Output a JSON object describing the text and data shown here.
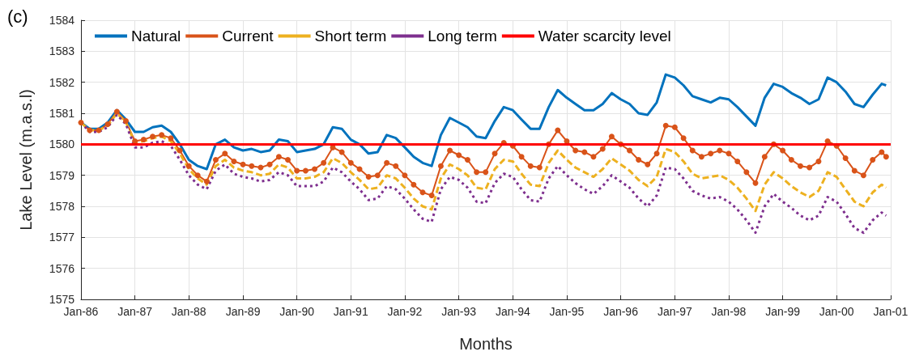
{
  "chart_data": {
    "type": "line",
    "title": "(c)",
    "xlabel": "Months",
    "ylabel": "Lake Level (m.a.s.l)",
    "x": [
      "1986-01",
      "1986-03",
      "1986-05",
      "1986-07",
      "1986-09",
      "1986-11",
      "1987-01",
      "1987-03",
      "1987-05",
      "1987-07",
      "1987-09",
      "1987-11",
      "1988-01",
      "1988-03",
      "1988-05",
      "1988-07",
      "1988-09",
      "1988-11",
      "1989-01",
      "1989-03",
      "1989-05",
      "1989-07",
      "1989-09",
      "1989-11",
      "1990-01",
      "1990-03",
      "1990-05",
      "1990-07",
      "1990-09",
      "1990-11",
      "1991-01",
      "1991-03",
      "1991-05",
      "1991-07",
      "1991-09",
      "1991-11",
      "1992-01",
      "1992-03",
      "1992-05",
      "1992-07",
      "1992-09",
      "1992-11",
      "1993-01",
      "1993-03",
      "1993-05",
      "1993-07",
      "1993-09",
      "1993-11",
      "1994-01",
      "1994-03",
      "1994-05",
      "1994-07",
      "1994-09",
      "1994-11",
      "1995-01",
      "1995-03",
      "1995-05",
      "1995-07",
      "1995-09",
      "1995-11",
      "1996-01",
      "1996-03",
      "1996-05",
      "1996-07",
      "1996-09",
      "1996-11",
      "1997-01",
      "1997-03",
      "1997-05",
      "1997-07",
      "1997-09",
      "1997-11",
      "1998-01",
      "1998-03",
      "1998-05",
      "1998-07",
      "1998-09",
      "1998-11",
      "1999-01",
      "1999-03",
      "1999-05",
      "1999-07",
      "1999-09",
      "1999-11",
      "2000-01",
      "2000-03",
      "2000-05",
      "2000-07",
      "2000-09",
      "2000-11",
      "2000-12"
    ],
    "series": [
      {
        "name": "Natural",
        "color": "#0072bd",
        "marker": "none",
        "line_style": "solid",
        "values": [
          1580.7,
          1580.5,
          1580.5,
          1580.7,
          1581.1,
          1580.8,
          1580.4,
          1580.4,
          1580.55,
          1580.6,
          1580.4,
          1580.0,
          1579.5,
          1579.3,
          1579.2,
          1580.0,
          1580.15,
          1579.9,
          1579.8,
          1579.85,
          1579.75,
          1579.8,
          1580.15,
          1580.1,
          1579.75,
          1579.8,
          1579.85,
          1580.0,
          1580.55,
          1580.5,
          1580.15,
          1580.0,
          1579.7,
          1579.75,
          1580.3,
          1580.2,
          1579.9,
          1579.6,
          1579.4,
          1579.3,
          1580.3,
          1580.85,
          1580.7,
          1580.55,
          1580.25,
          1580.2,
          1580.75,
          1581.2,
          1581.1,
          1580.8,
          1580.5,
          1580.5,
          1581.2,
          1581.75,
          1581.5,
          1581.3,
          1581.1,
          1581.1,
          1581.3,
          1581.65,
          1581.45,
          1581.3,
          1581.0,
          1580.95,
          1581.35,
          1582.25,
          1582.15,
          1581.9,
          1581.55,
          1581.45,
          1581.35,
          1581.5,
          1581.45,
          1581.2,
          1580.9,
          1580.6,
          1581.5,
          1581.95,
          1581.85,
          1581.65,
          1581.5,
          1581.3,
          1581.45,
          1582.15,
          1582.0,
          1581.7,
          1581.3,
          1581.2,
          1581.6,
          1581.95,
          1581.9
        ]
      },
      {
        "name": "Current",
        "color": "#d95319",
        "marker": "circle",
        "line_style": "solid",
        "values": [
          1580.7,
          1580.45,
          1580.45,
          1580.65,
          1581.05,
          1580.75,
          1580.1,
          1580.15,
          1580.25,
          1580.3,
          1580.2,
          1579.8,
          1579.3,
          1579.0,
          1578.8,
          1579.5,
          1579.7,
          1579.45,
          1579.35,
          1579.3,
          1579.25,
          1579.35,
          1579.6,
          1579.5,
          1579.15,
          1579.15,
          1579.2,
          1579.4,
          1579.9,
          1579.75,
          1579.4,
          1579.2,
          1578.95,
          1579.0,
          1579.4,
          1579.3,
          1579.0,
          1578.7,
          1578.45,
          1578.35,
          1579.3,
          1579.8,
          1579.65,
          1579.5,
          1579.1,
          1579.1,
          1579.7,
          1580.05,
          1579.95,
          1579.6,
          1579.3,
          1579.25,
          1580.0,
          1580.45,
          1580.1,
          1579.8,
          1579.75,
          1579.6,
          1579.85,
          1580.25,
          1580.0,
          1579.8,
          1579.5,
          1579.35,
          1579.7,
          1580.6,
          1580.55,
          1580.2,
          1579.8,
          1579.6,
          1579.7,
          1579.8,
          1579.7,
          1579.45,
          1579.1,
          1578.75,
          1579.6,
          1580.0,
          1579.8,
          1579.5,
          1579.3,
          1579.25,
          1579.45,
          1580.1,
          1579.95,
          1579.55,
          1579.15,
          1579.0,
          1579.5,
          1579.75,
          1579.6
        ]
      },
      {
        "name": "Short term",
        "color": "#edb120",
        "marker": "none",
        "line_style": "dashed",
        "values": [
          1580.7,
          1580.45,
          1580.45,
          1580.6,
          1581.0,
          1580.7,
          1580.05,
          1580.1,
          1580.2,
          1580.25,
          1580.1,
          1579.7,
          1579.2,
          1578.9,
          1578.7,
          1579.3,
          1579.5,
          1579.25,
          1579.15,
          1579.1,
          1579.0,
          1579.05,
          1579.35,
          1579.25,
          1578.9,
          1578.9,
          1578.95,
          1579.1,
          1579.55,
          1579.4,
          1579.1,
          1578.85,
          1578.55,
          1578.6,
          1579.0,
          1578.9,
          1578.6,
          1578.25,
          1578.0,
          1577.9,
          1578.9,
          1579.35,
          1579.2,
          1579.0,
          1578.6,
          1578.55,
          1579.2,
          1579.5,
          1579.45,
          1579.05,
          1578.7,
          1578.65,
          1579.4,
          1579.8,
          1579.5,
          1579.25,
          1579.1,
          1578.95,
          1579.2,
          1579.55,
          1579.35,
          1579.15,
          1578.85,
          1578.65,
          1578.95,
          1579.85,
          1579.75,
          1579.45,
          1579.05,
          1578.9,
          1578.95,
          1579.0,
          1578.85,
          1578.6,
          1578.25,
          1577.85,
          1578.7,
          1579.1,
          1578.9,
          1578.65,
          1578.45,
          1578.3,
          1578.5,
          1579.1,
          1578.95,
          1578.55,
          1578.15,
          1578.0,
          1578.45,
          1578.7,
          1578.6
        ]
      },
      {
        "name": "Long term",
        "color": "#7e2f8e",
        "marker": "none",
        "line_style": "dotted",
        "values": [
          1580.7,
          1580.4,
          1580.4,
          1580.55,
          1580.95,
          1580.65,
          1579.9,
          1579.9,
          1580.05,
          1580.1,
          1579.95,
          1579.5,
          1579.0,
          1578.7,
          1578.55,
          1579.15,
          1579.35,
          1579.05,
          1578.95,
          1578.9,
          1578.8,
          1578.85,
          1579.1,
          1579.0,
          1578.65,
          1578.65,
          1578.65,
          1578.8,
          1579.25,
          1579.1,
          1578.8,
          1578.55,
          1578.2,
          1578.25,
          1578.65,
          1578.55,
          1578.25,
          1577.9,
          1577.6,
          1577.5,
          1578.55,
          1578.95,
          1578.85,
          1578.6,
          1578.15,
          1578.1,
          1578.75,
          1579.05,
          1578.95,
          1578.55,
          1578.2,
          1578.15,
          1578.9,
          1579.3,
          1579.0,
          1578.75,
          1578.55,
          1578.4,
          1578.65,
          1579.0,
          1578.8,
          1578.6,
          1578.25,
          1578.0,
          1578.35,
          1579.25,
          1579.2,
          1578.9,
          1578.5,
          1578.35,
          1578.25,
          1578.3,
          1578.15,
          1577.9,
          1577.55,
          1577.15,
          1578.0,
          1578.4,
          1578.15,
          1577.95,
          1577.7,
          1577.55,
          1577.7,
          1578.3,
          1578.15,
          1577.75,
          1577.3,
          1577.15,
          1577.55,
          1577.8,
          1577.7
        ]
      }
    ],
    "ref_lines": [
      {
        "axis": "y",
        "value": 1580,
        "label": "Water scarcity level",
        "color": "#ff0000",
        "line_style": "solid"
      }
    ],
    "xlim": [
      "1986-01",
      "2001-01"
    ],
    "xticks": [
      {
        "value": "1986-01",
        "label": "Jan-86"
      },
      {
        "value": "1987-01",
        "label": "Jan-87"
      },
      {
        "value": "1988-01",
        "label": "Jan-88"
      },
      {
        "value": "1989-01",
        "label": "Jan-89"
      },
      {
        "value": "1990-01",
        "label": "Jan-90"
      },
      {
        "value": "1991-01",
        "label": "Jan-91"
      },
      {
        "value": "1992-01",
        "label": "Jan-92"
      },
      {
        "value": "1993-01",
        "label": "Jan-93"
      },
      {
        "value": "1994-01",
        "label": "Jan-94"
      },
      {
        "value": "1995-01",
        "label": "Jan-95"
      },
      {
        "value": "1996-01",
        "label": "Jan-96"
      },
      {
        "value": "1997-01",
        "label": "Jan-97"
      },
      {
        "value": "1998-01",
        "label": "Jan-98"
      },
      {
        "value": "1999-01",
        "label": "Jan-99"
      },
      {
        "value": "2000-01",
        "label": "Jan-00"
      },
      {
        "value": "2001-01",
        "label": "Jan-01"
      }
    ],
    "ylim": [
      1575,
      1584
    ],
    "yticks": [
      1575,
      1576,
      1577,
      1578,
      1579,
      1580,
      1581,
      1582,
      1583,
      1584
    ],
    "grid": true,
    "legend": "top left"
  }
}
